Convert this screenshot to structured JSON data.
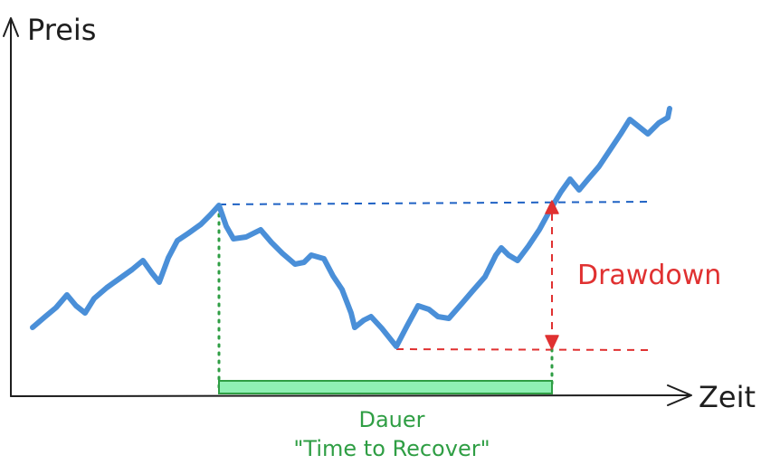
{
  "labels": {
    "y_axis": "Preis",
    "x_axis": "Zeit",
    "drawdown": "Drawdown",
    "duration_line1": "Dauer",
    "duration_line2": "\"Time to Recover\""
  },
  "colors": {
    "axis": "#1e1e1e",
    "price_line": "#4a8fd8",
    "peak_line": "#1f62c4",
    "drawdown": "#e03131",
    "duration": "#2f9e44",
    "duration_fill": "#8ff0b4"
  }
}
